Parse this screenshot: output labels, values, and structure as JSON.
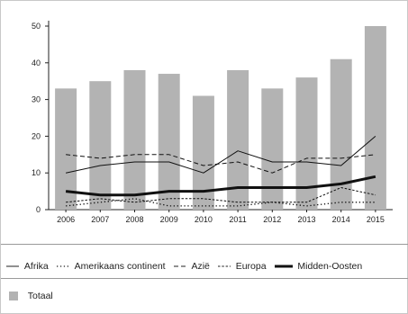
{
  "chart_data": {
    "type": "bar",
    "categories": [
      "2006",
      "2007",
      "2008",
      "2009",
      "2010",
      "2011",
      "2012",
      "2013",
      "2014",
      "2015"
    ],
    "ylim": [
      0,
      50
    ],
    "yticks": [
      0,
      10,
      20,
      30,
      40,
      50
    ],
    "bar_series": {
      "name": "Totaal",
      "color": "#b3b3b3",
      "values": [
        33,
        35,
        38,
        37,
        31,
        38,
        33,
        36,
        41,
        50
      ]
    },
    "series": [
      {
        "name": "Afrika",
        "style": "solid",
        "values": [
          10,
          12,
          13,
          13,
          10,
          16,
          13,
          13,
          12,
          20
        ]
      },
      {
        "name": "Amerikaans continent",
        "style": "dotted",
        "values": [
          1,
          2,
          3,
          1,
          1,
          1,
          2,
          1,
          2,
          2
        ]
      },
      {
        "name": "Azië",
        "style": "dashed",
        "values": [
          15,
          14,
          15,
          15,
          12,
          13,
          10,
          14,
          14,
          15
        ]
      },
      {
        "name": "Europa",
        "style": "shortdash",
        "values": [
          2,
          3,
          2,
          3,
          3,
          2,
          2,
          2,
          6,
          4
        ]
      },
      {
        "name": "Midden-Oosten",
        "style": "thick",
        "values": [
          5,
          4,
          4,
          5,
          5,
          6,
          6,
          6,
          7,
          9
        ]
      }
    ],
    "grid": false,
    "legend_position": "bottom"
  }
}
